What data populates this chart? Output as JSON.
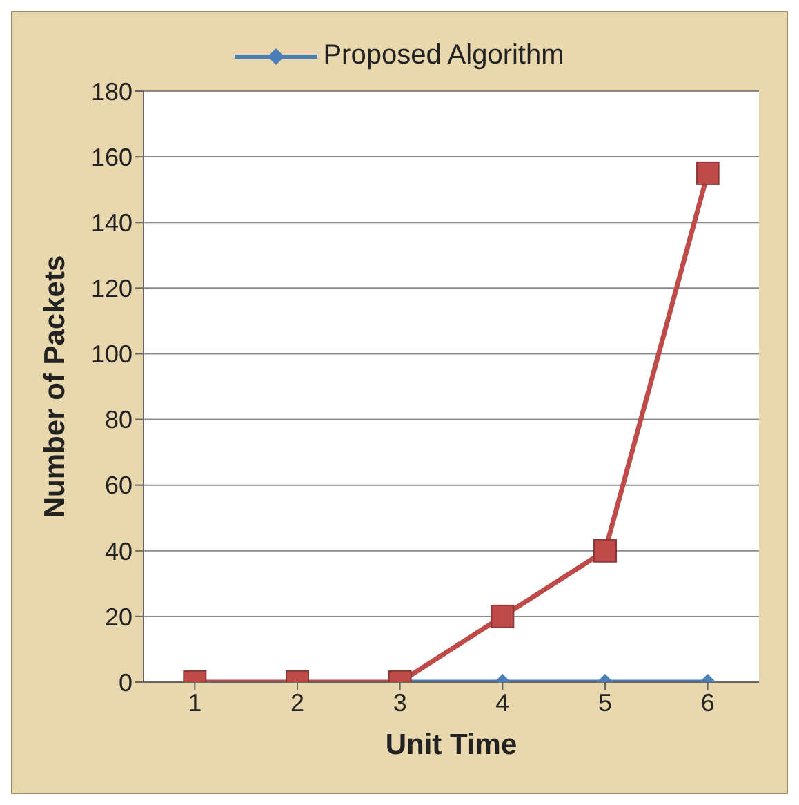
{
  "chart_data": {
    "type": "line",
    "categories": [
      "1",
      "2",
      "3",
      "4",
      "5",
      "6"
    ],
    "xlabel": "Unit Time",
    "ylabel": "Number of Packets",
    "series": [
      {
        "name": "Proposed Algorithm",
        "color": "#4a7ebb",
        "values": [
          null,
          null,
          0,
          0,
          0,
          0
        ],
        "marker": "diamond"
      },
      {
        "color": "#be4b48",
        "values": [
          0,
          0,
          0,
          20,
          40,
          155
        ],
        "marker": "square"
      }
    ],
    "ylim": [
      0,
      180
    ],
    "yticks": [
      0,
      20,
      40,
      60,
      80,
      100,
      120,
      140,
      160,
      180
    ],
    "grid": "y",
    "legend": "top",
    "line_style": "solid"
  }
}
